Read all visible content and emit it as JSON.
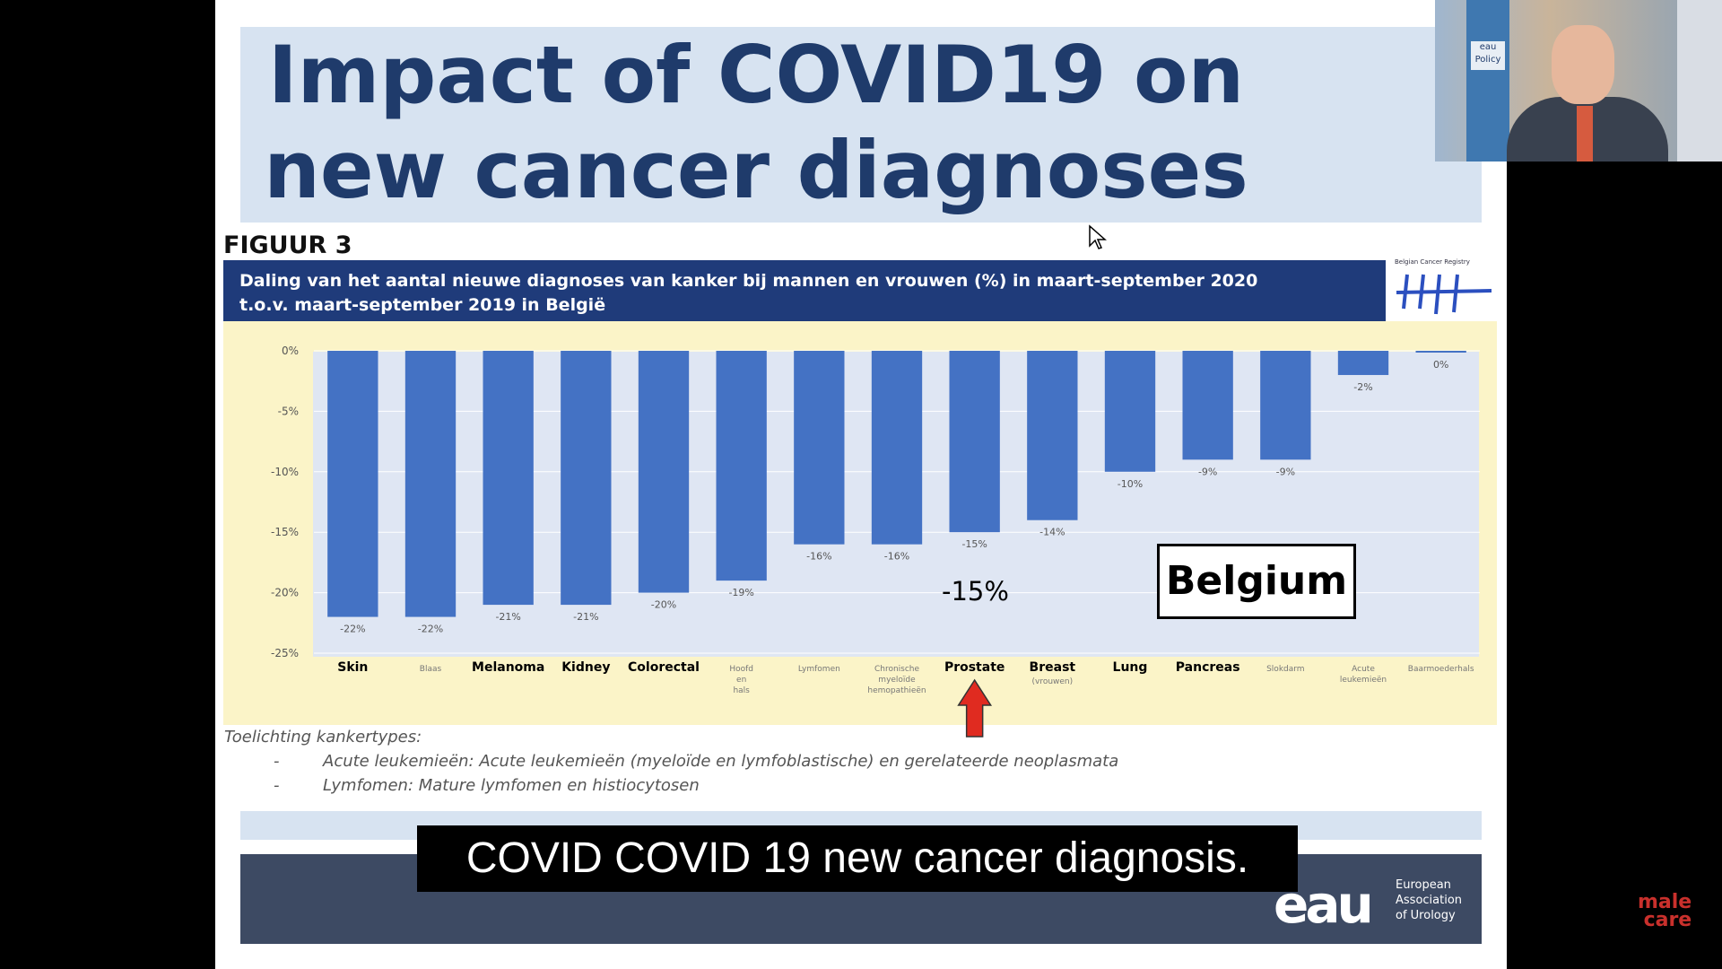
{
  "slide": {
    "title_line1": "Impact of COVID19 on",
    "title_line2": "new cancer diagnoses",
    "figure_label": "FIGUUR 3",
    "banner_line1": "Daling van het aantal nieuwe diagnoses van kanker bij mannen en vrouwen (%) in maart-september 2020",
    "banner_line2": "t.o.v. maart-september 2019 in België",
    "registry_label": "Belgian Cancer Registry",
    "highlight_value": "-15%",
    "country_label": "Belgium",
    "notes_title": "Toelichting kankertypes:",
    "notes": [
      "Acute leukemieën: Acute leukemieën (myeloïde en lymfoblastische) en gerelateerde neoplasmata",
      "Lymfomen: Mature lymfomen en histiocytosen"
    ],
    "bullet": "-"
  },
  "footer": {
    "logo_text": "eau",
    "org_line1": "European",
    "org_line2": "Association",
    "org_line3": "of Urology"
  },
  "subtitle": "COVID COVID 19 new cancer diagnosis.",
  "webcam": {
    "sign_text": "eau Policy"
  },
  "brand": {
    "line1": "male",
    "line2": "care"
  },
  "colors": {
    "bar": "#4472c4",
    "banner": "#1f3b7a",
    "title": "#1f3b6b",
    "arrow": "#e02b20"
  },
  "chart_data": {
    "type": "bar",
    "title": "Daling van het aantal nieuwe diagnoses van kanker bij mannen en vrouwen (%) in maart-september 2020 t.o.v. maart-september 2019 in België",
    "categories": [
      "Skin",
      "Blaas",
      "Melanoma",
      "Kidney",
      "Colorectal",
      "Hoofd en hals",
      "Lymfomen",
      "Chronische myeloïde hemopathieën",
      "Prostate",
      "Breast",
      "Lung",
      "Pancreas",
      "Slokdarm",
      "Acute leukemieën",
      "Baarmoederhals"
    ],
    "values": [
      -22,
      -22,
      -21,
      -21,
      -20,
      -19,
      -16,
      -16,
      -15,
      -14,
      -10,
      -9,
      -9,
      -2,
      0
    ],
    "data_labels": [
      "-22%",
      "-22%",
      "-21%",
      "-21%",
      "-20%",
      "-19%",
      "-16%",
      "-16%",
      "-15%",
      "-14%",
      "-10%",
      "-9%",
      "-9%",
      "-2%",
      "0%"
    ],
    "category_sublabels": [
      "",
      "",
      "",
      "",
      "",
      "",
      "",
      "",
      "",
      "(vrouwen)",
      "",
      "",
      "",
      "",
      ""
    ],
    "emphasized": [
      true,
      false,
      true,
      true,
      true,
      false,
      false,
      false,
      true,
      true,
      true,
      true,
      false,
      false,
      false
    ],
    "highlighted_category": "Prostate",
    "y_ticks": [
      "0%",
      "-5%",
      "-10%",
      "-15%",
      "-20%",
      "-25%"
    ],
    "ylim": [
      -25,
      0
    ],
    "grid": true,
    "xlabel": "",
    "ylabel": ""
  }
}
